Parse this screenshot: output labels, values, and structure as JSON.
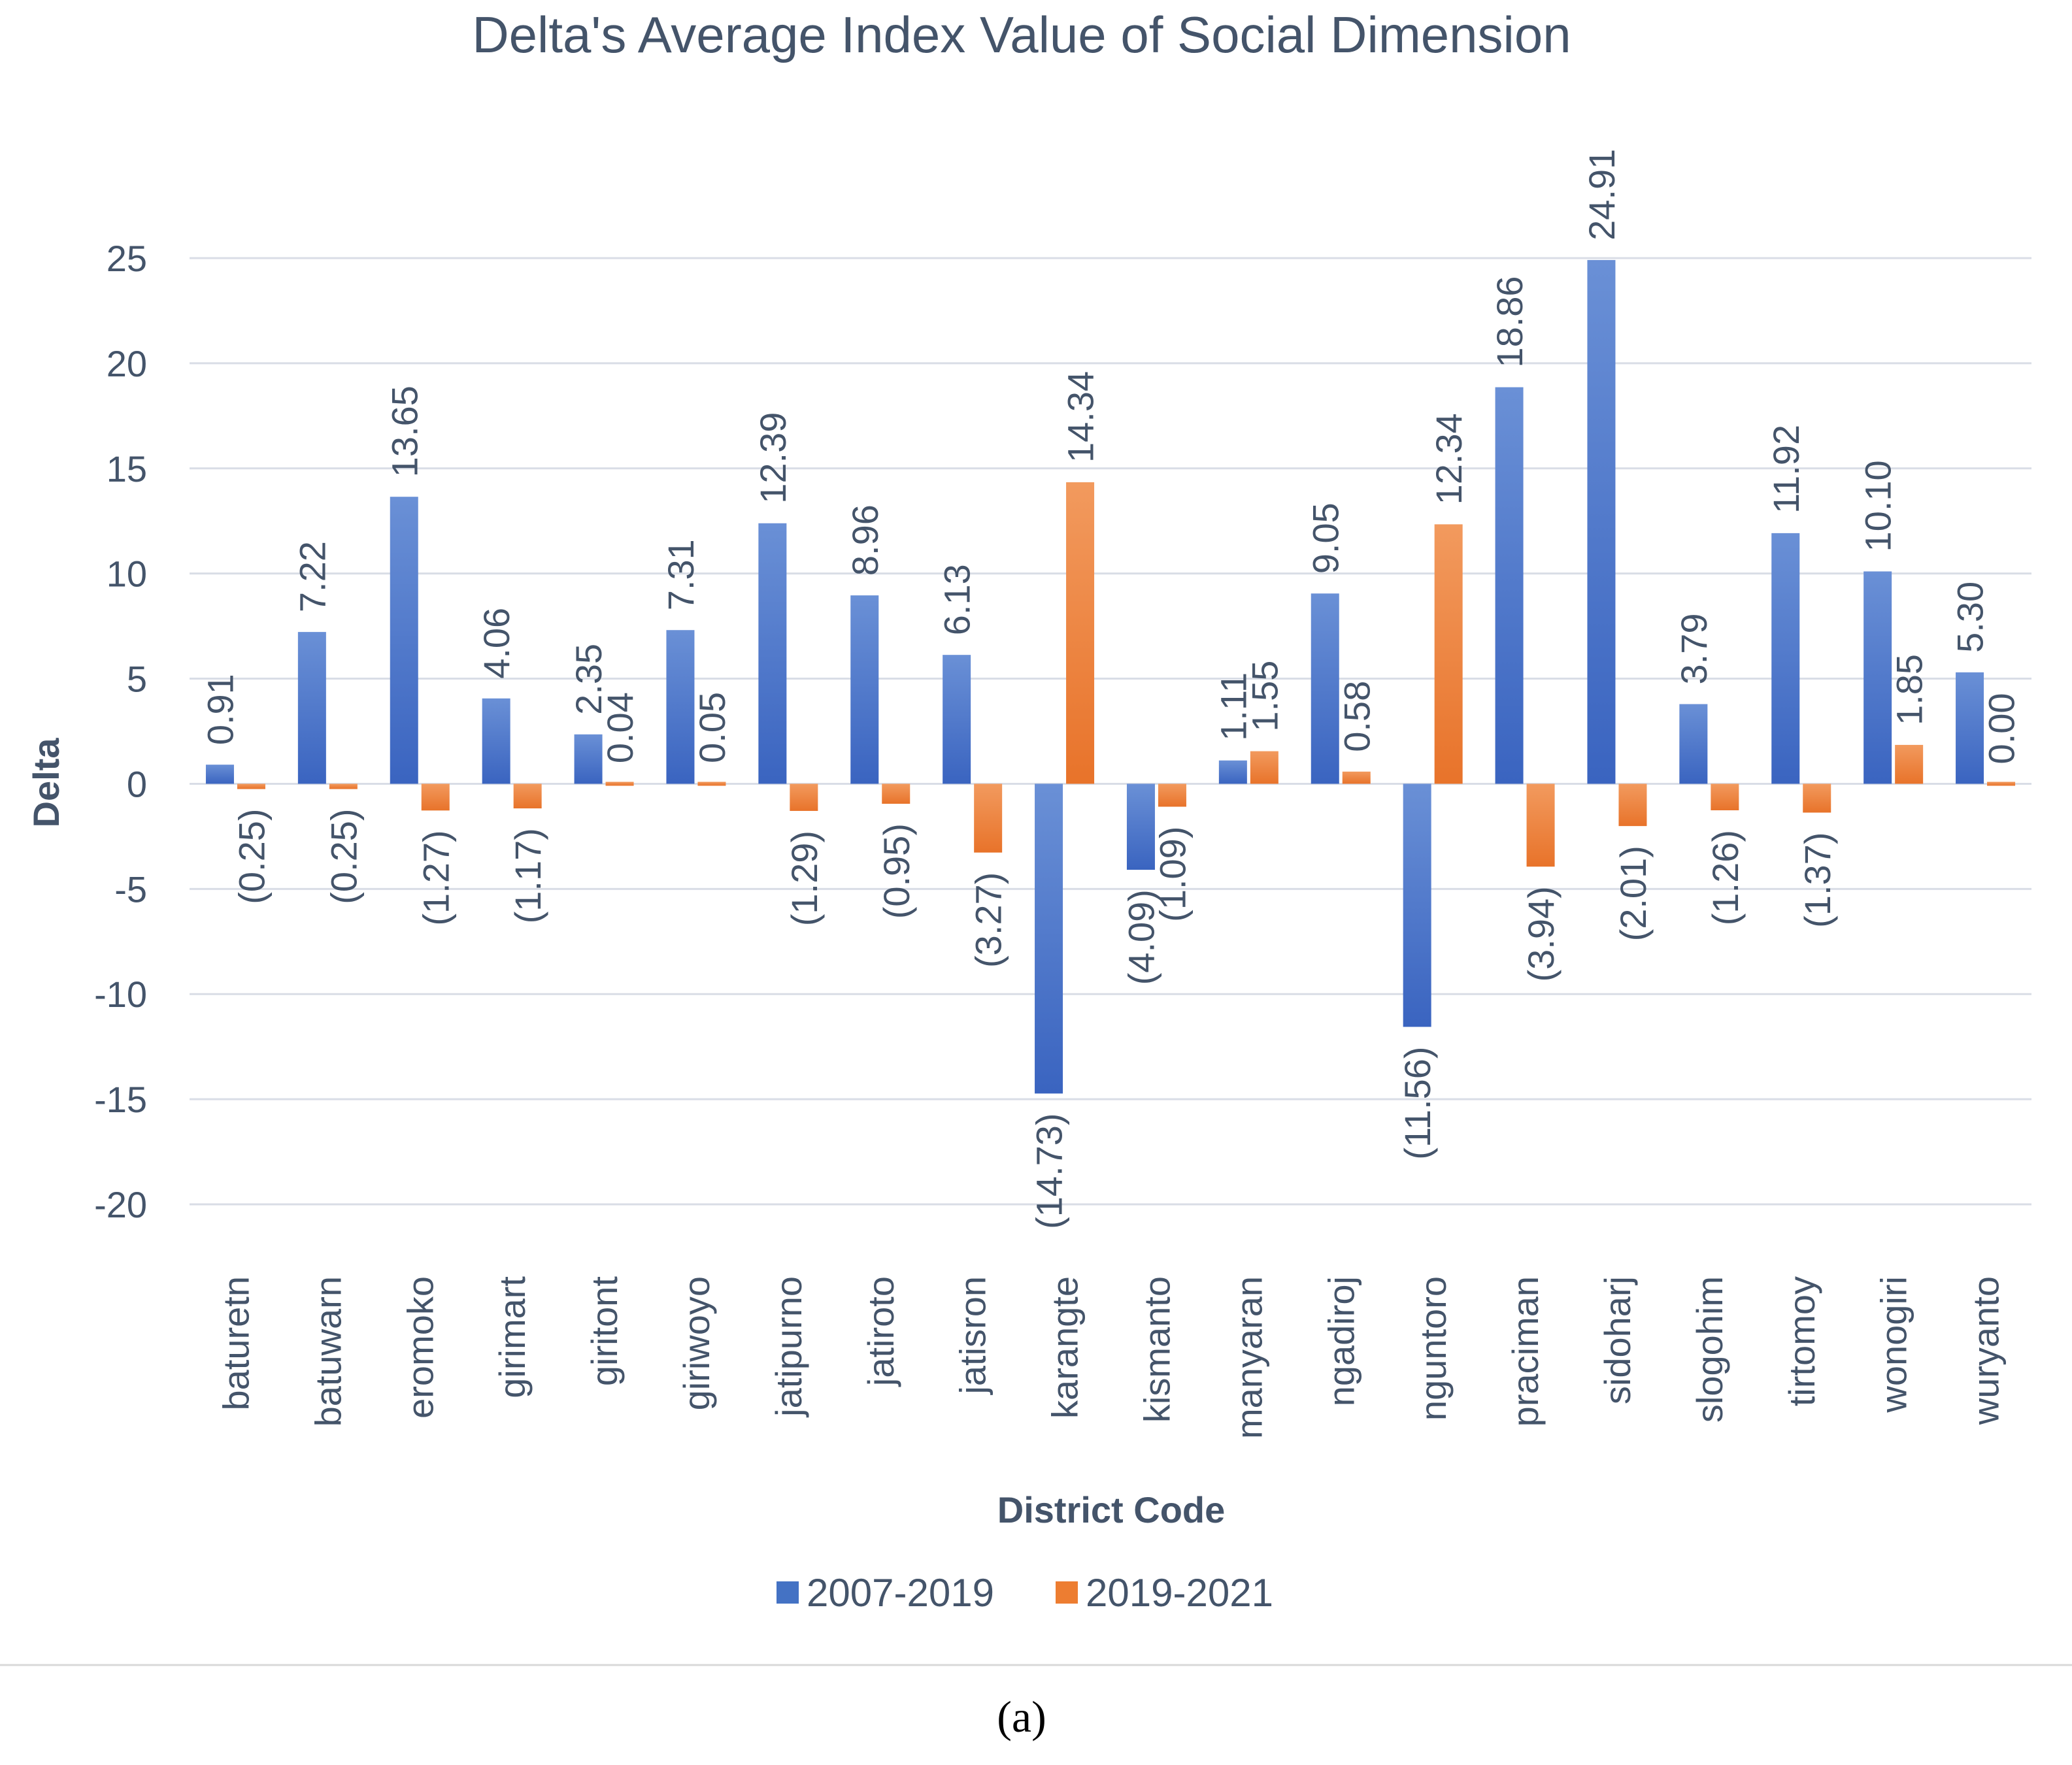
{
  "chart_data": {
    "type": "bar",
    "title": "Delta's Average Index Value of Social Dimension",
    "xlabel": "District Code",
    "ylabel": "Delta",
    "ylim": [
      -20,
      25
    ],
    "yticks": [
      25,
      20,
      15,
      10,
      5,
      0,
      -5,
      -10,
      -15,
      -20
    ],
    "grid": true,
    "legend_position": "bottom",
    "categories": [
      "baturetn",
      "batuwarn",
      "eromoko",
      "girimart",
      "giritont",
      "giriwoyo",
      "jatipurno",
      "jatiroto",
      "jatisron",
      "karangte",
      "kismanto",
      "manyaran",
      "ngadiroj",
      "nguntoro",
      "praciman",
      "sidoharj",
      "slogohim",
      "tirtomoy",
      "wonogiri",
      "wuryanto"
    ],
    "series": [
      {
        "name": "2007-2019",
        "color": "#4472C4",
        "values": [
          0.91,
          7.22,
          13.65,
          4.06,
          2.35,
          7.31,
          12.39,
          8.96,
          6.13,
          -14.73,
          -4.09,
          1.11,
          9.05,
          -11.56,
          18.86,
          24.91,
          3.79,
          11.92,
          10.1,
          5.3
        ],
        "labels": [
          "0.91",
          "7.22",
          "13.65",
          "4.06",
          "2.35",
          "7.31",
          "12.39",
          "8.96",
          "6.13",
          "(14.73)",
          "(4.09)",
          "1.11",
          "9.05",
          "(11.56)",
          "18.86",
          "24.91",
          "3.79",
          "11.92",
          "10.10",
          "5.30"
        ]
      },
      {
        "name": "2019-2021",
        "color": "#ED7D31",
        "values": [
          -0.25,
          -0.25,
          -1.27,
          -1.17,
          0.04,
          0.05,
          -1.29,
          -0.95,
          -3.27,
          14.34,
          -1.09,
          1.55,
          0.58,
          12.34,
          -3.94,
          -2.01,
          -1.26,
          -1.37,
          1.85,
          0.0
        ],
        "labels": [
          "(0.25)",
          "(0.25)",
          "(1.27)",
          "(1.17)",
          "0.04",
          "0.05",
          "(1.29)",
          "(0.95)",
          "(3.27)",
          "14.34",
          "(1.09)",
          "1.55",
          "0.58",
          "12.34",
          "(3.94)",
          "(2.01)",
          "(1.26)",
          "(1.37)",
          "1.85",
          "0.00"
        ]
      }
    ]
  },
  "caption": "(a)"
}
